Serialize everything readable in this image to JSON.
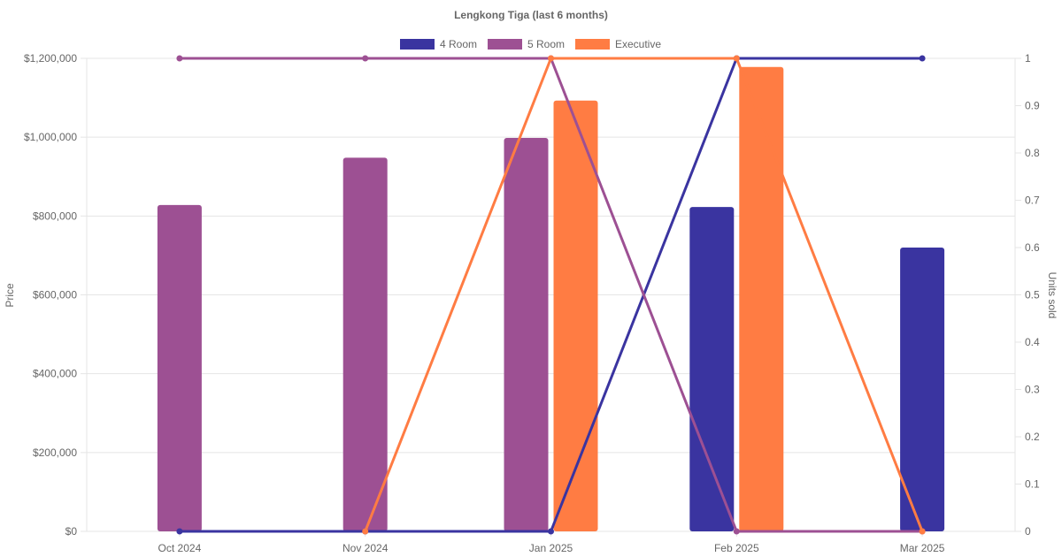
{
  "chart_data": {
    "type": "bar",
    "title": "Lengkong Tiga (last 6 months)",
    "categories": [
      "Oct 2024",
      "Nov 2024",
      "Jan 2025",
      "Feb 2025",
      "Mar 2025"
    ],
    "y_left": {
      "label": "Price",
      "range": [
        0,
        1200000
      ],
      "ticks": [
        "$0",
        "$200,000",
        "$400,000",
        "$600,000",
        "$800,000",
        "$1,000,000",
        "$1,200,000"
      ]
    },
    "y_right": {
      "label": "Units sold",
      "range": [
        0,
        1
      ],
      "ticks": [
        "0",
        "0.1",
        "0.2",
        "0.3",
        "0.4",
        "0.5",
        "0.6",
        "0.7",
        "0.8",
        "0.9",
        "1"
      ]
    },
    "grid": true,
    "legend_position": "top",
    "series": [
      {
        "name": "4 Room",
        "color": "#3a34a0",
        "price": [
          null,
          null,
          null,
          823000,
          720000
        ],
        "units_sold": [
          0,
          0,
          0,
          1,
          1
        ]
      },
      {
        "name": "5 Room",
        "color": "#9d5093",
        "price": [
          828000,
          948000,
          998000,
          null,
          null
        ],
        "units_sold": [
          1,
          1,
          1,
          0,
          0
        ]
      },
      {
        "name": "Executive",
        "color": "#ff7c43",
        "price": [
          null,
          null,
          1093000,
          1178000,
          null
        ],
        "units_sold": [
          null,
          0,
          1,
          1,
          0
        ]
      }
    ]
  }
}
